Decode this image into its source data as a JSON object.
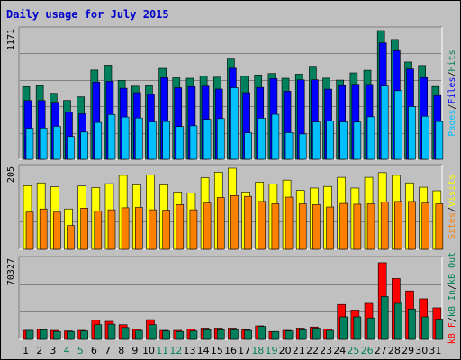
{
  "title": "Daily usage for July 2015",
  "colors": {
    "background": "#c0c0c0",
    "title": "#0000cc",
    "hits": "#00805c",
    "files": "#0000ff",
    "pages": "#00c0ff",
    "visits": "#ffff00",
    "sites": "#ff8000",
    "kbin": "#00805c",
    "kbout": "#ff0000",
    "weekend_day": "#00805c",
    "weekday": "#000000"
  },
  "chart_data": [
    {
      "type": "bar",
      "name": "pages-files-hits",
      "max_label": "1171",
      "ymax": 1171,
      "legend": [
        "Pages",
        "/",
        "Files",
        "/",
        "Hits"
      ],
      "categories": [
        "1",
        "2",
        "3",
        "4",
        "5",
        "6",
        "7",
        "8",
        "9",
        "10",
        "11",
        "12",
        "13",
        "14",
        "15",
        "16",
        "17",
        "18",
        "19",
        "20",
        "21",
        "22",
        "23",
        "24",
        "25",
        "26",
        "27",
        "28",
        "29",
        "30",
        "31"
      ],
      "weekend_days": [
        4,
        5,
        11,
        12,
        18,
        19,
        25,
        26
      ],
      "series": [
        {
          "name": "Hits",
          "values": [
            660,
            670,
            600,
            535,
            568,
            812,
            856,
            718,
            665,
            668,
            827,
            741,
            737,
            758,
            747,
            912,
            755,
            767,
            780,
            737,
            774,
            846,
            738,
            720,
            786,
            810,
            1171,
            1090,
            885,
            853,
            662
          ]
        },
        {
          "name": "Files",
          "values": [
            534,
            534,
            519,
            427,
            414,
            702,
            709,
            646,
            606,
            590,
            742,
            651,
            661,
            665,
            639,
            828,
            606,
            654,
            734,
            619,
            722,
            723,
            638,
            669,
            682,
            681,
            1059,
            989,
            822,
            743,
            580
          ]
        },
        {
          "name": "Pages",
          "values": [
            282,
            284,
            299,
            207,
            247,
            335,
            406,
            384,
            375,
            339,
            343,
            297,
            304,
            363,
            370,
            651,
            240,
            373,
            409,
            242,
            230,
            338,
            348,
            339,
            338,
            386,
            666,
            624,
            479,
            391,
            343
          ]
        }
      ]
    },
    {
      "type": "bar",
      "name": "sites-visits",
      "max_label": "205",
      "ymax": 205,
      "legend": [
        "Sites",
        "/",
        "Visits"
      ],
      "categories": [
        "1",
        "2",
        "3",
        "4",
        "5",
        "6",
        "7",
        "8",
        "9",
        "10",
        "11",
        "12",
        "13",
        "14",
        "15",
        "16",
        "17",
        "18",
        "19",
        "20",
        "21",
        "22",
        "23",
        "24",
        "25",
        "26",
        "27",
        "28",
        "29",
        "30",
        "31"
      ],
      "series": [
        {
          "name": "Visits",
          "values": [
            161,
            168,
            158,
            102,
            160,
            156,
            166,
            187,
            163,
            188,
            163,
            145,
            142,
            181,
            195,
            205,
            145,
            170,
            165,
            175,
            149,
            155,
            159,
            182,
            155,
            182,
            194,
            187,
            168,
            157,
            148
          ]
        },
        {
          "name": "Sites",
          "values": [
            94,
            102,
            94,
            60,
            104,
            97,
            100,
            105,
            106,
            100,
            99,
            113,
            100,
            117,
            131,
            136,
            134,
            121,
            115,
            132,
            115,
            113,
            107,
            116,
            114,
            115,
            120,
            121,
            121,
            117,
            115
          ]
        }
      ]
    },
    {
      "type": "bar",
      "name": "kbf-kbin-kbout",
      "max_label": "70327",
      "ymax": 70327,
      "legend": [
        "kB F",
        "/",
        "kB In",
        "/",
        "kB Out"
      ],
      "categories": [
        "1",
        "2",
        "3",
        "4",
        "5",
        "6",
        "7",
        "8",
        "9",
        "10",
        "11",
        "12",
        "13",
        "14",
        "15",
        "16",
        "17",
        "18",
        "19",
        "20",
        "21",
        "22",
        "23",
        "24",
        "25",
        "26",
        "27",
        "28",
        "29",
        "30",
        "31"
      ],
      "series": [
        {
          "name": "kB F",
          "values": [
            8000,
            9000,
            8000,
            7500,
            8000,
            17000,
            16000,
            13000,
            9000,
            17500,
            8000,
            8000,
            9000,
            10000,
            10000,
            10000,
            8500,
            12000,
            7000,
            8000,
            10000,
            11000,
            9000,
            31000,
            26000,
            32000,
            68000,
            54000,
            43000,
            36000,
            28000
          ]
        },
        {
          "name": "kB Out",
          "values": [
            8000,
            8500,
            7000,
            7000,
            7500,
            13000,
            13500,
            10500,
            8000,
            13000,
            7500,
            7000,
            7500,
            8500,
            8500,
            8500,
            8000,
            11500,
            7000,
            7500,
            8500,
            10000,
            8000,
            20000,
            20000,
            19000,
            38000,
            32000,
            27000,
            20000,
            18000
          ]
        }
      ]
    }
  ]
}
